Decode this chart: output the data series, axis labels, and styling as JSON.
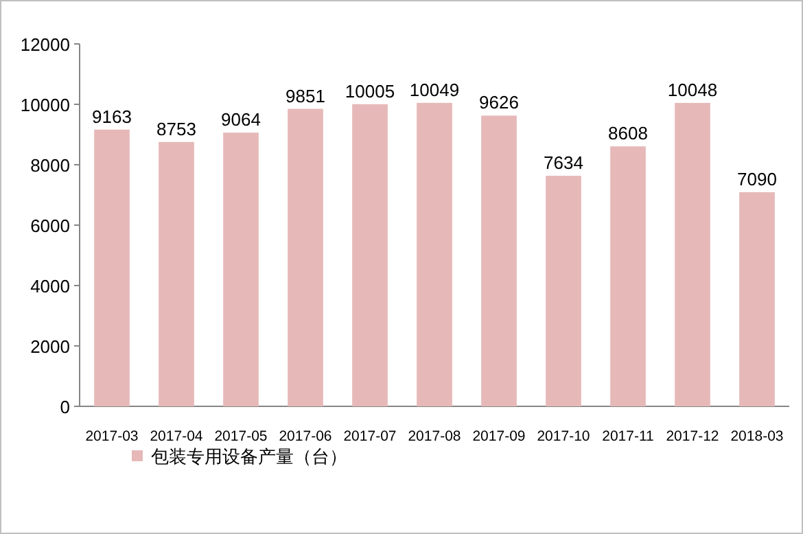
{
  "chart_data": {
    "type": "bar",
    "categories": [
      "2017-03",
      "2017-04",
      "2017-05",
      "2017-06",
      "2017-07",
      "2017-08",
      "2017-09",
      "2017-10",
      "2017-11",
      "2017-12",
      "2018-03"
    ],
    "series": [
      {
        "name": "包装专用设备产量（台）",
        "color": "#e6b9b8",
        "values": [
          9163,
          8753,
          9064,
          9851,
          10005,
          10049,
          9626,
          7634,
          8608,
          10048,
          7090
        ]
      }
    ],
    "ylim": [
      0,
      12000
    ],
    "yticks": [
      0,
      2000,
      4000,
      6000,
      8000,
      10000,
      12000
    ],
    "data_labels": true,
    "legend": "bottom"
  }
}
